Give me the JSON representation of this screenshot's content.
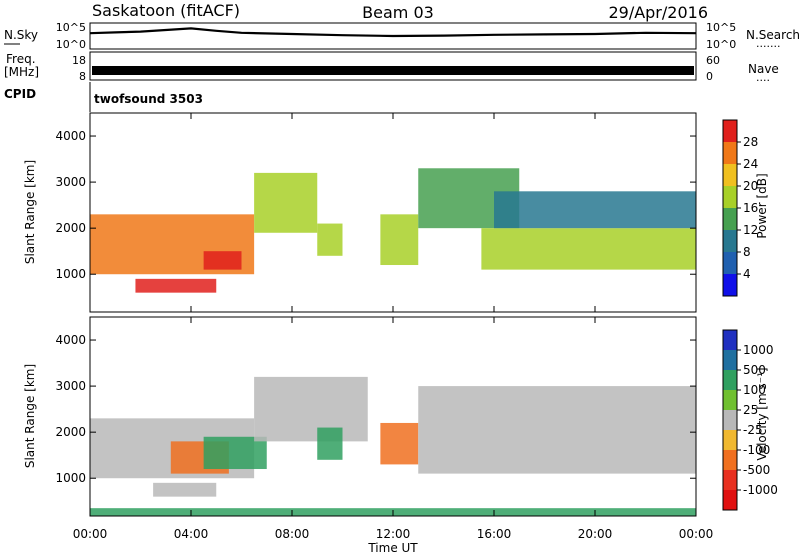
{
  "header": {
    "station": "Saskatoon (fitACF)",
    "beam": "Beam 03",
    "date": "29/Apr/2016"
  },
  "noise_panel": {
    "left_label": "N.Sky",
    "right_label": "N.Search",
    "right_label_suffix": "·······",
    "left_ticks": [
      "10^5",
      "10^0"
    ],
    "right_ticks": [
      "10^5",
      "10^0"
    ]
  },
  "freq_panel": {
    "left_label_1": "Freq.",
    "left_label_2": "[MHz]",
    "left_ticks": [
      "18",
      "8"
    ],
    "right_label": "Nave",
    "right_label_suffix": "····",
    "right_ticks": [
      "60",
      "0"
    ]
  },
  "cpid": {
    "label": "CPID",
    "value": "twofsound 3503"
  },
  "axes": {
    "xlabel": "Time UT",
    "x_ticks": [
      "00:00",
      "04:00",
      "08:00",
      "12:00",
      "16:00",
      "20:00",
      "00:00"
    ],
    "ylabel": "Slant Range [km]",
    "y_ticks": [
      "4000",
      "3000",
      "2000",
      "1000"
    ]
  },
  "power_colorbar": {
    "label": "Power [dB]",
    "ticks": [
      "28",
      "24",
      "20",
      "16",
      "12",
      "8",
      "4"
    ],
    "colors": [
      "#e0201c",
      "#f07818",
      "#f0c020",
      "#a8d028",
      "#46a050",
      "#287890",
      "#2060b0",
      "#1010e8"
    ]
  },
  "velocity_colorbar": {
    "label": "Velocity [m s⁻¹]",
    "ticks": [
      "1000",
      "500",
      "100",
      "25",
      "-25",
      "-100",
      "-500",
      "-1000"
    ],
    "colors": [
      "#2030c0",
      "#2070a0",
      "#30a060",
      "#70c030",
      "#b8b8b8",
      "#f0b830",
      "#f07020",
      "#e83020",
      "#e01010"
    ]
  },
  "chart_data": [
    {
      "type": "line",
      "title": "N.Sky / N.Search",
      "x": [
        0,
        1,
        2,
        3,
        4,
        5,
        6,
        8,
        10,
        12,
        14,
        16,
        18,
        20,
        22,
        24
      ],
      "ylim": [
        0,
        5
      ],
      "y_scale": "log10",
      "series": [
        {
          "name": "N.Sky",
          "values": [
            3.2,
            3.4,
            3.6,
            4.0,
            4.4,
            3.8,
            3.3,
            3.0,
            2.7,
            2.5,
            2.6,
            2.8,
            2.9,
            3.0,
            3.3,
            3.2
          ]
        }
      ]
    },
    {
      "type": "line",
      "title": "Freq. [MHz] / Nave",
      "x": [
        0,
        24
      ],
      "ylim": [
        8,
        18
      ],
      "series": [
        {
          "name": "Freq.",
          "values": [
            10.5,
            10.5
          ]
        }
      ]
    },
    {
      "type": "heatmap",
      "title": "Power [dB]",
      "xlabel": "Time UT",
      "ylabel": "Slant Range [km]",
      "xlim": [
        0,
        24
      ],
      "ylim": [
        180,
        4500
      ],
      "regions": [
        {
          "t_start": 0.0,
          "t_end": 6.5,
          "range_low": 1000,
          "range_high": 2300,
          "power_db": 22
        },
        {
          "t_start": 4.5,
          "t_end": 6.0,
          "range_low": 1100,
          "range_high": 1500,
          "power_db": 28
        },
        {
          "t_start": 1.8,
          "t_end": 5.0,
          "range_low": 600,
          "range_high": 900,
          "power_db": 26
        },
        {
          "t_start": 6.5,
          "t_end": 9.0,
          "range_low": 1900,
          "range_high": 3200,
          "power_db": 14
        },
        {
          "t_start": 9.0,
          "t_end": 10.0,
          "range_low": 1400,
          "range_high": 2100,
          "power_db": 16
        },
        {
          "t_start": 11.5,
          "t_end": 13.0,
          "range_low": 1200,
          "range_high": 2300,
          "power_db": 14
        },
        {
          "t_start": 13.0,
          "t_end": 17.0,
          "range_low": 2000,
          "range_high": 3300,
          "power_db": 10
        },
        {
          "t_start": 15.5,
          "t_end": 24.0,
          "range_low": 1100,
          "range_high": 2000,
          "power_db": 16
        },
        {
          "t_start": 16.0,
          "t_end": 24.0,
          "range_low": 2000,
          "range_high": 2800,
          "power_db": 8
        }
      ]
    },
    {
      "type": "heatmap",
      "title": "Velocity [m s⁻¹]",
      "xlabel": "Time UT",
      "ylabel": "Slant Range [km]",
      "xlim": [
        0,
        24
      ],
      "ylim": [
        180,
        4500
      ],
      "regions": [
        {
          "t_start": 0.0,
          "t_end": 6.5,
          "range_low": 1000,
          "range_high": 2300,
          "velocity": 0
        },
        {
          "t_start": 3.2,
          "t_end": 5.5,
          "range_low": 1100,
          "range_high": 1800,
          "velocity": -300
        },
        {
          "t_start": 4.5,
          "t_end": 7.0,
          "range_low": 1200,
          "range_high": 1900,
          "velocity": 150
        },
        {
          "t_start": 2.5,
          "t_end": 5.0,
          "range_low": 600,
          "range_high": 900,
          "velocity": 0
        },
        {
          "t_start": 6.5,
          "t_end": 11.0,
          "range_low": 1800,
          "range_high": 3200,
          "velocity": 0
        },
        {
          "t_start": 9.0,
          "t_end": 10.0,
          "range_low": 1400,
          "range_high": 2100,
          "velocity": 200
        },
        {
          "t_start": 11.5,
          "t_end": 13.0,
          "range_low": 1300,
          "range_high": 2200,
          "velocity": -150
        },
        {
          "t_start": 13.0,
          "t_end": 24.0,
          "range_low": 1100,
          "range_high": 3000,
          "velocity": 0
        },
        {
          "t_start": 0.0,
          "t_end": 24.0,
          "range_low": 180,
          "range_high": 350,
          "velocity": 80
        }
      ]
    }
  ]
}
